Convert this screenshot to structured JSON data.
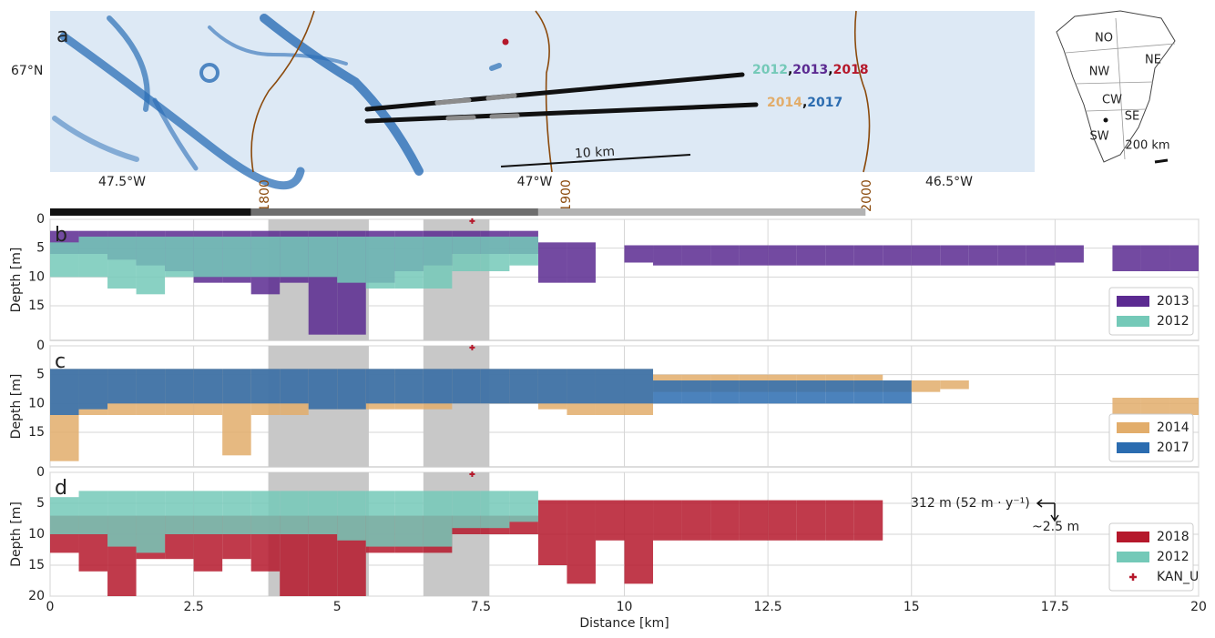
{
  "map": {
    "panel": "a",
    "lat_label": "67°N",
    "lon_labels": [
      "47.5°W",
      "47°W",
      "46.5°W"
    ],
    "contours": [
      "1800",
      "1900",
      "2000"
    ],
    "track_labels": [
      [
        {
          "text": "2012",
          "color": "#74c9b8"
        },
        {
          "text": "2013",
          "color": "#5b2a91"
        },
        {
          "text": "2018",
          "color": "#b5182b"
        }
      ],
      [
        {
          "text": "2014",
          "color": "#e2ad6b"
        },
        {
          "text": "2017",
          "color": "#2b6cb0"
        }
      ]
    ],
    "separator": ",",
    "scale_label": "10 km",
    "inset": {
      "regions": [
        "NO",
        "NE",
        "NW",
        "CW",
        "SE",
        "SW"
      ],
      "scale": "200 km"
    }
  },
  "chart_data": [
    {
      "type": "range",
      "panel": "b",
      "ylabel": "Depth [m]",
      "xlim": [
        0,
        20
      ],
      "ylim": [
        0,
        21
      ],
      "yticks": [
        0,
        5,
        10,
        15
      ],
      "grid": true,
      "zones": [
        {
          "start": 0,
          "end": 3.5,
          "color": "#111111"
        },
        {
          "start": 3.5,
          "end": 8.5,
          "color": "#6e6e6e"
        },
        {
          "start": 8.5,
          "end": 14.2,
          "color": "#b3b3b3"
        }
      ],
      "spans": [
        [
          3.8,
          5.55
        ],
        [
          6.5,
          7.65
        ]
      ],
      "point": {
        "x": 7.35,
        "y": 0.3,
        "color": "#b5182b"
      },
      "series": [
        {
          "name": "2013",
          "color": "#5b2a91",
          "x": [
            0,
            0.5,
            1,
            1.5,
            2,
            2.5,
            3,
            3.5,
            4,
            4.5,
            5,
            5.5,
            6,
            6.5,
            7,
            7.5,
            8,
            8.5,
            9,
            9.5,
            10,
            10.5,
            11,
            11.5,
            12,
            12.5,
            13,
            13.5,
            14,
            14.5,
            15,
            15.5,
            16,
            16.5,
            17,
            17.5,
            18,
            18.5,
            19,
            19.5
          ],
          "top": [
            2,
            2,
            2,
            2,
            2,
            2,
            2,
            2,
            2,
            2,
            2,
            2,
            2,
            2,
            2,
            2,
            2,
            4,
            4,
            null,
            4.5,
            4.5,
            4.5,
            4.5,
            4.5,
            4.5,
            4.5,
            4.5,
            4.5,
            4.5,
            4.5,
            4.5,
            4.5,
            4.5,
            4.5,
            4.5,
            null,
            4.5,
            4.5,
            4.5
          ],
          "bottom": [
            6,
            6,
            7,
            8,
            9,
            11,
            11,
            13,
            11,
            20,
            20,
            11,
            9,
            8,
            6,
            6,
            6,
            11,
            11,
            null,
            7.5,
            8,
            8,
            8,
            8,
            8,
            8,
            8,
            8,
            8,
            8,
            8,
            8,
            8,
            8,
            7.5,
            null,
            9,
            9,
            9
          ]
        },
        {
          "name": "2012",
          "color": "#74c9b8",
          "x": [
            0,
            0.5,
            1,
            1.5,
            2,
            2.5,
            3,
            3.5,
            4,
            4.5,
            5,
            5.5,
            6,
            6.5,
            7,
            7.5,
            8,
            8.5,
            9,
            9.5,
            10,
            10.5,
            11,
            11.5,
            12,
            12.5,
            13,
            13.5,
            14,
            14.5,
            15,
            15.5,
            16,
            16.5,
            17,
            17.5,
            18,
            18.5,
            19,
            19.5
          ],
          "top": [
            4,
            3,
            3,
            3,
            3,
            3,
            3,
            3,
            3,
            3,
            3,
            3,
            3,
            3,
            3,
            3,
            3,
            null,
            null,
            null,
            null,
            null,
            null,
            null,
            null,
            null,
            null,
            null,
            null,
            null,
            null,
            null,
            null,
            null,
            null,
            null,
            null,
            null,
            null,
            null
          ],
          "bottom": [
            10,
            10,
            12,
            13,
            10,
            10,
            10,
            10,
            10,
            10,
            11,
            12,
            12,
            12,
            9,
            9,
            8,
            null,
            null,
            null,
            null,
            null,
            null,
            null,
            null,
            null,
            null,
            null,
            null,
            null,
            null,
            null,
            null,
            null,
            null,
            null,
            null,
            null,
            null,
            null
          ]
        }
      ]
    },
    {
      "type": "range",
      "panel": "c",
      "ylabel": "Depth [m]",
      "xlim": [
        0,
        20
      ],
      "ylim": [
        0,
        21
      ],
      "yticks": [
        0,
        5,
        10,
        15
      ],
      "grid": true,
      "spans": [
        [
          3.8,
          5.55
        ],
        [
          6.5,
          7.65
        ]
      ],
      "point": {
        "x": 7.35,
        "y": 0.3,
        "color": "#b5182b"
      },
      "series": [
        {
          "name": "2014",
          "color": "#e2ad6b",
          "x": [
            0,
            0.5,
            1,
            1.5,
            2,
            2.5,
            3,
            3.5,
            4,
            4.5,
            5,
            5.5,
            6,
            6.5,
            7,
            7.5,
            8,
            8.5,
            9,
            9.5,
            10,
            10.5,
            11,
            11.5,
            12,
            12.5,
            13,
            13.5,
            14,
            14.5,
            15,
            15.5,
            16,
            16.5,
            17,
            17.5,
            18,
            18.5,
            19,
            19.5
          ],
          "top": [
            4,
            4,
            4,
            4,
            4,
            4,
            4,
            4,
            4,
            4,
            4,
            4,
            4,
            4,
            4,
            4,
            4,
            4,
            4,
            4,
            4,
            5,
            5,
            5,
            5,
            5,
            5,
            5,
            5,
            6,
            6,
            6,
            null,
            null,
            null,
            null,
            null,
            9,
            9,
            9
          ],
          "bottom": [
            20,
            12,
            12,
            12,
            12,
            12,
            19,
            12,
            12,
            11,
            11,
            11,
            11,
            11,
            10,
            10,
            10,
            11,
            12,
            12,
            12,
            8,
            8,
            8,
            8,
            8,
            8,
            8,
            8,
            8,
            8,
            7.5,
            null,
            null,
            null,
            null,
            null,
            12,
            12,
            12
          ]
        },
        {
          "name": "2017",
          "color": "#2b6cb0",
          "x": [
            0,
            0.5,
            1,
            1.5,
            2,
            2.5,
            3,
            3.5,
            4,
            4.5,
            5,
            5.5,
            6,
            6.5,
            7,
            7.5,
            8,
            8.5,
            9,
            9.5,
            10,
            10.5,
            11,
            11.5,
            12,
            12.5,
            13,
            13.5,
            14,
            14.5,
            15,
            15.5,
            16,
            16.5,
            17,
            17.5,
            18,
            18.5,
            19,
            19.5
          ],
          "top": [
            4,
            4,
            4,
            4,
            4,
            4,
            4,
            4,
            4,
            4,
            4,
            4,
            4,
            4,
            4,
            4,
            4,
            4,
            4,
            4,
            4,
            6,
            6,
            6,
            6,
            6,
            6,
            6,
            6,
            6,
            null,
            null,
            null,
            null,
            null,
            null,
            null,
            null,
            null,
            null
          ],
          "bottom": [
            12,
            11,
            10,
            10,
            10,
            10,
            10,
            10,
            10,
            11,
            11,
            10,
            10,
            10,
            10,
            10,
            10,
            10,
            10,
            10,
            10,
            10,
            10,
            10,
            10,
            10,
            10,
            10,
            10,
            10,
            null,
            null,
            null,
            null,
            null,
            null,
            null,
            null,
            null,
            null
          ]
        }
      ]
    },
    {
      "type": "range",
      "panel": "d",
      "ylabel": "Depth [m]",
      "xlabel": "Distance [km]",
      "xlim": [
        0,
        20
      ],
      "ylim": [
        0,
        20
      ],
      "xticks": [
        0,
        2.5,
        5,
        7.5,
        10,
        12.5,
        15,
        17.5,
        20
      ],
      "yticks": [
        0,
        5,
        10,
        15,
        20
      ],
      "grid": true,
      "spans": [
        [
          3.8,
          5.55
        ],
        [
          6.5,
          7.65
        ]
      ],
      "point": {
        "name": "KAN_U",
        "x": 7.35,
        "y": 0.3,
        "color": "#b5182b"
      },
      "annotations": [
        "312 m (52 m · y⁻¹)",
        "~2.5 m"
      ],
      "series": [
        {
          "name": "2018",
          "color": "#b5182b",
          "x": [
            0,
            0.5,
            1,
            1.5,
            2,
            2.5,
            3,
            3.5,
            4,
            4.5,
            5,
            5.5,
            6,
            6.5,
            7,
            7.5,
            8,
            8.5,
            9,
            9.5,
            10,
            10.5,
            11,
            11.5,
            12,
            12.5,
            13,
            13.5,
            14,
            14.5,
            15,
            15.5,
            16,
            16.5,
            17,
            17.5,
            18,
            18.5,
            19,
            19.5
          ],
          "top": [
            7,
            7,
            7,
            7,
            7,
            7,
            7,
            7,
            7,
            7,
            7,
            7,
            7,
            7,
            7,
            7,
            7,
            4.5,
            4.5,
            4.5,
            4.5,
            4.5,
            4.5,
            4.5,
            4.5,
            4.5,
            4.5,
            4.5,
            4.5,
            null,
            null,
            null,
            null,
            null,
            null,
            null,
            null,
            null,
            null,
            null
          ],
          "bottom": [
            13,
            16,
            20,
            14,
            14,
            16,
            14,
            16,
            20,
            20,
            20,
            13,
            13,
            13,
            10,
            10,
            10,
            15,
            18,
            11,
            18,
            11,
            11,
            11,
            11,
            11,
            11,
            11,
            11,
            null,
            null,
            null,
            null,
            null,
            null,
            null,
            null,
            null,
            null,
            null
          ]
        },
        {
          "name": "2012",
          "color": "#74c9b8",
          "x": [
            0,
            0.5,
            1,
            1.5,
            2,
            2.5,
            3,
            3.5,
            4,
            4.5,
            5,
            5.5,
            6,
            6.5,
            7,
            7.5,
            8,
            8.5,
            9,
            9.5,
            10,
            10.5,
            11,
            11.5,
            12,
            12.5,
            13,
            13.5,
            14,
            14.5,
            15,
            15.5,
            16,
            16.5,
            17,
            17.5,
            18,
            18.5,
            19,
            19.5
          ],
          "top": [
            4,
            3,
            3,
            3,
            3,
            3,
            3,
            3,
            3,
            3,
            3,
            3,
            3,
            3,
            3,
            3,
            3,
            null,
            null,
            null,
            null,
            null,
            null,
            null,
            null,
            null,
            null,
            null,
            null,
            null,
            null,
            null,
            null,
            null,
            null,
            null,
            null,
            null,
            null,
            null
          ],
          "bottom": [
            10,
            10,
            12,
            13,
            10,
            10,
            10,
            10,
            10,
            10,
            11,
            12,
            12,
            12,
            9,
            9,
            8,
            null,
            null,
            null,
            null,
            null,
            null,
            null,
            null,
            null,
            null,
            null,
            null,
            null,
            null,
            null,
            null,
            null,
            null,
            null,
            null,
            null,
            null,
            null
          ]
        }
      ]
    }
  ]
}
